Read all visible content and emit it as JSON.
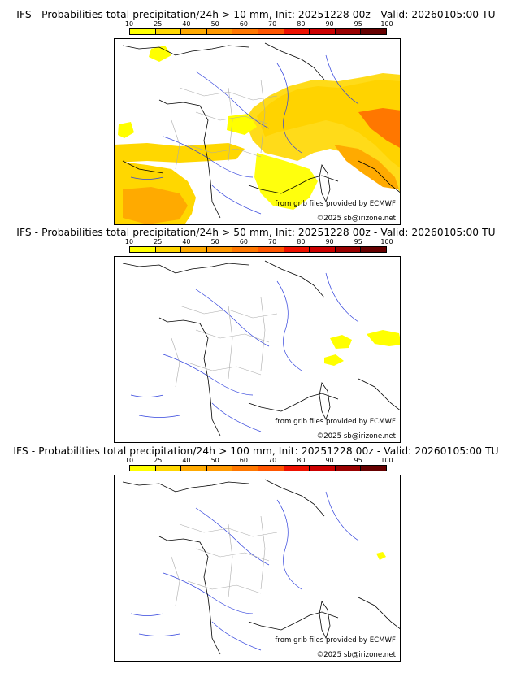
{
  "colorbar": {
    "ticks": [
      "10",
      "25",
      "40",
      "50",
      "60",
      "70",
      "80",
      "90",
      "95",
      "100"
    ],
    "colors": [
      "#ffff00",
      "#ffd700",
      "#ffaa00",
      "#ff9900",
      "#ff7700",
      "#ff5500",
      "#ee1100",
      "#cc0000",
      "#990000",
      "#660000"
    ]
  },
  "panels": [
    {
      "title": "IFS - Probabilities total precipitation/24h > 10 mm, Init: 20251228 00z - Valid: 20260105:00 TU",
      "source_credit": "from grib files provided by ECMWF",
      "copyright": "©2025 sb@irizone.net"
    },
    {
      "title": "IFS - Probabilities total precipitation/24h > 50 mm, Init: 20251228 00z - Valid: 20260105:00 TU",
      "source_credit": "from grib files provided by ECMWF",
      "copyright": "©2025 sb@irizone.net"
    },
    {
      "title": "IFS - Probabilities total precipitation/24h > 100 mm, Init: 20251228 00z - Valid: 20260105:00 TU",
      "source_credit": "from grib files provided by ECMWF",
      "copyright": "©2025 sb@irizone.net"
    }
  ],
  "palette": {
    "coast": "#000000",
    "rivers": "#3344dd",
    "borders": "#aaaaaa"
  }
}
